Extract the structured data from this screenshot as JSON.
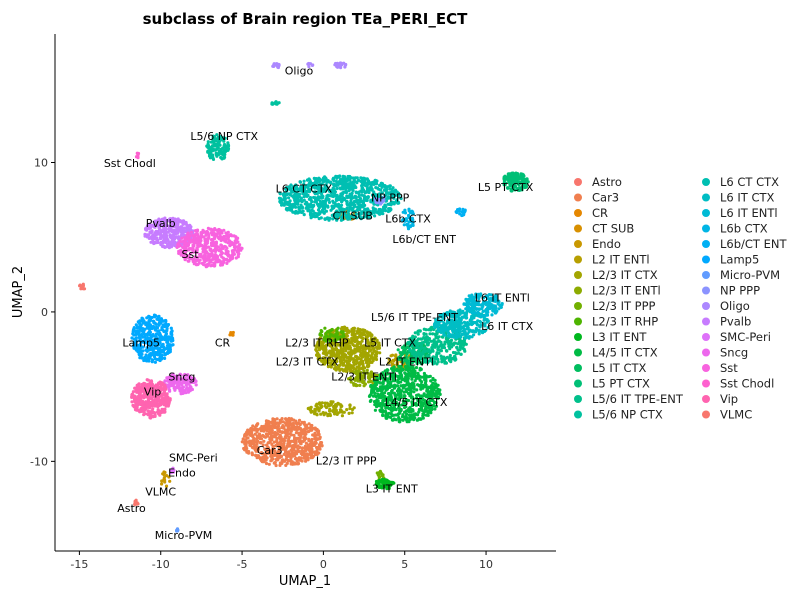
{
  "chart_data": {
    "type": "scatter",
    "title": "subclass of Brain region TEa_PERI_ECT",
    "xlabel": "UMAP_1",
    "ylabel": "UMAP_2",
    "xlim": [
      -16.5,
      14.3
    ],
    "ylim": [
      -16.0,
      18.6
    ],
    "x_ticks": [
      -15,
      -10,
      -5,
      0,
      5,
      10
    ],
    "x_tick_labels": [
      "-15",
      "-10",
      "-5",
      "0",
      "5",
      "10"
    ],
    "y_ticks": [
      -10,
      0,
      10
    ],
    "y_tick_labels": [
      "-10",
      "0",
      "10"
    ],
    "grid": false,
    "legend_placement": "right",
    "series": [
      {
        "name": "Astro",
        "color": "#F8766D",
        "clusters": [
          {
            "cx": -11.5,
            "cy": -12.8,
            "rx": 0.15,
            "ry": 0.2,
            "n": 10
          }
        ]
      },
      {
        "name": "Car3",
        "color": "#F07F4F",
        "clusters": [
          {
            "cx": -2.5,
            "cy": -8.7,
            "rx": 2.5,
            "ry": 1.6,
            "n": 650
          }
        ]
      },
      {
        "name": "CR",
        "color": "#E58700",
        "clusters": [
          {
            "cx": -5.6,
            "cy": -1.5,
            "rx": 0.15,
            "ry": 0.15,
            "n": 8
          }
        ]
      },
      {
        "name": "CT SUB",
        "color": "#D89000",
        "clusters": [
          {
            "cx": 1.5,
            "cy": 6.5,
            "rx": 0.5,
            "ry": 0.4,
            "n": 30
          }
        ]
      },
      {
        "name": "Endo",
        "color": "#C99800",
        "clusters": [
          {
            "cx": -9.7,
            "cy": -11.2,
            "rx": 0.3,
            "ry": 0.6,
            "n": 15
          }
        ]
      },
      {
        "name": "L2 IT ENTl",
        "color": "#B79F00",
        "clusters": [
          {
            "cx": 4.8,
            "cy": -3.3,
            "rx": 0.8,
            "ry": 0.6,
            "n": 60
          }
        ]
      },
      {
        "name": "L2/3 IT CTX",
        "color": "#A3A500",
        "clusters": [
          {
            "cx": 1.5,
            "cy": -2.5,
            "rx": 2.0,
            "ry": 1.5,
            "n": 600
          },
          {
            "cx": 0.5,
            "cy": -6.5,
            "rx": 1.5,
            "ry": 0.5,
            "n": 90
          }
        ]
      },
      {
        "name": "L2/3 IT ENTl",
        "color": "#8DAB00",
        "clusters": [
          {
            "cx": 2.5,
            "cy": -4.5,
            "rx": 1.0,
            "ry": 0.6,
            "n": 80
          }
        ]
      },
      {
        "name": "L2/3 IT PPP",
        "color": "#72B000",
        "clusters": [
          {
            "cx": 3.5,
            "cy": -11.0,
            "rx": 0.25,
            "ry": 0.4,
            "n": 20
          }
        ]
      },
      {
        "name": "L2/3 IT RHP",
        "color": "#4EB400",
        "clusters": [
          {
            "cx": 0.5,
            "cy": -1.5,
            "rx": 0.8,
            "ry": 0.5,
            "n": 50
          }
        ]
      },
      {
        "name": "L3 IT ENT",
        "color": "#00B81F",
        "clusters": [
          {
            "cx": 3.8,
            "cy": -11.5,
            "rx": 0.6,
            "ry": 0.35,
            "n": 60
          }
        ]
      },
      {
        "name": "L4/5 IT CTX",
        "color": "#00BB45",
        "clusters": [
          {
            "cx": 5.0,
            "cy": -5.5,
            "rx": 2.2,
            "ry": 1.9,
            "n": 650
          }
        ]
      },
      {
        "name": "L5 IT CTX",
        "color": "#00BD5F",
        "clusters": [
          {
            "cx": 5.5,
            "cy": -2.8,
            "rx": 1.0,
            "ry": 0.8,
            "n": 120
          }
        ]
      },
      {
        "name": "L5 PT CTX",
        "color": "#00BF76",
        "clusters": [
          {
            "cx": 11.8,
            "cy": 8.7,
            "rx": 0.8,
            "ry": 0.65,
            "n": 150
          }
        ]
      },
      {
        "name": "L5/6 IT TPE-ENT",
        "color": "#00C08B",
        "clusters": [
          {
            "cx": 7.0,
            "cy": -2.2,
            "rx": 1.8,
            "ry": 1.3,
            "n": 300
          }
        ]
      },
      {
        "name": "L5/6 NP CTX",
        "color": "#00C19F",
        "clusters": [
          {
            "cx": -6.5,
            "cy": 11.0,
            "rx": 0.7,
            "ry": 0.9,
            "n": 120
          },
          {
            "cx": -3.0,
            "cy": 14.0,
            "rx": 0.3,
            "ry": 0.15,
            "n": 12
          }
        ]
      },
      {
        "name": "L6 CT CTX",
        "color": "#00BFB2",
        "clusters": [
          {
            "cx": 1.0,
            "cy": 7.6,
            "rx": 3.8,
            "ry": 1.5,
            "n": 900
          }
        ]
      },
      {
        "name": "L6 IT CTX",
        "color": "#00BDC4",
        "clusters": [
          {
            "cx": 8.5,
            "cy": -0.8,
            "rx": 1.7,
            "ry": 1.0,
            "n": 300
          }
        ]
      },
      {
        "name": "L6 IT ENTl",
        "color": "#00BAD5",
        "clusters": [
          {
            "cx": 9.8,
            "cy": 0.5,
            "rx": 1.2,
            "ry": 0.8,
            "n": 160
          }
        ]
      },
      {
        "name": "L6b CTX",
        "color": "#00B5E5",
        "clusters": [
          {
            "cx": 5.2,
            "cy": 6.2,
            "rx": 0.4,
            "ry": 0.7,
            "n": 40
          }
        ]
      },
      {
        "name": "L6b/CT ENT",
        "color": "#00B0F3",
        "clusters": [
          {
            "cx": 8.5,
            "cy": 6.7,
            "rx": 0.4,
            "ry": 0.25,
            "n": 20
          }
        ]
      },
      {
        "name": "Lamp5",
        "color": "#00A9FF",
        "clusters": [
          {
            "cx": -10.5,
            "cy": -1.8,
            "rx": 1.3,
            "ry": 1.6,
            "n": 380
          }
        ]
      },
      {
        "name": "Micro-PVM",
        "color": "#619CFF",
        "clusters": [
          {
            "cx": -9.0,
            "cy": -14.6,
            "rx": 0.12,
            "ry": 0.1,
            "n": 6
          }
        ]
      },
      {
        "name": "NP PPP",
        "color": "#8B93FF",
        "clusters": [
          {
            "cx": 3.5,
            "cy": 7.5,
            "rx": 0.4,
            "ry": 0.3,
            "n": 20
          }
        ]
      },
      {
        "name": "Oligo",
        "color": "#AC88FF",
        "clusters": [
          {
            "cx": -2.9,
            "cy": 16.5,
            "rx": 0.25,
            "ry": 0.2,
            "n": 15
          },
          {
            "cx": 1.0,
            "cy": 16.5,
            "rx": 0.4,
            "ry": 0.2,
            "n": 20
          },
          {
            "cx": -0.8,
            "cy": 16.5,
            "rx": 0.2,
            "ry": 0.15,
            "n": 6
          }
        ]
      },
      {
        "name": "Pvalb",
        "color": "#C77CFF",
        "clusters": [
          {
            "cx": -9.5,
            "cy": 5.3,
            "rx": 1.5,
            "ry": 1.0,
            "n": 380
          }
        ]
      },
      {
        "name": "SMC-Peri",
        "color": "#DE71F9",
        "clusters": [
          {
            "cx": -9.3,
            "cy": -10.6,
            "rx": 0.15,
            "ry": 0.25,
            "n": 8
          }
        ]
      },
      {
        "name": "Sncg",
        "color": "#ED68ED",
        "clusters": [
          {
            "cx": -8.8,
            "cy": -4.8,
            "rx": 1.0,
            "ry": 0.7,
            "n": 140
          }
        ]
      },
      {
        "name": "Sst",
        "color": "#F863DF",
        "clusters": [
          {
            "cx": -7.0,
            "cy": 4.3,
            "rx": 2.0,
            "ry": 1.3,
            "n": 450
          }
        ]
      },
      {
        "name": "Sst Chodl",
        "color": "#FE61CF",
        "clusters": [
          {
            "cx": -11.4,
            "cy": 10.5,
            "rx": 0.12,
            "ry": 0.2,
            "n": 6
          }
        ]
      },
      {
        "name": "Vip",
        "color": "#FF64B0",
        "clusters": [
          {
            "cx": -10.6,
            "cy": -5.8,
            "rx": 1.2,
            "ry": 1.3,
            "n": 380
          }
        ]
      },
      {
        "name": "VLMC",
        "color": "#F8766D",
        "clusters": [
          {
            "cx": -14.8,
            "cy": 1.7,
            "rx": 0.2,
            "ry": 0.2,
            "n": 10
          }
        ]
      }
    ],
    "cluster_labels": [
      {
        "text": "Oligo",
        "x": -1.5,
        "y": 15.9
      },
      {
        "text": "L5/6 NP CTX",
        "x": -6.1,
        "y": 11.5
      },
      {
        "text": "Sst Chodl",
        "x": -11.9,
        "y": 9.7
      },
      {
        "text": "L6 CT CTX",
        "x": -1.2,
        "y": 8.0
      },
      {
        "text": "NP PPP",
        "x": 4.1,
        "y": 7.4
      },
      {
        "text": "CT SUB",
        "x": 1.8,
        "y": 6.2
      },
      {
        "text": "L6b CTX",
        "x": 5.2,
        "y": 6.0
      },
      {
        "text": "L6b/CT ENT",
        "x": 6.2,
        "y": 4.6
      },
      {
        "text": "L5 PT CTX",
        "x": 11.2,
        "y": 8.1
      },
      {
        "text": "Pvalb",
        "x": -10.0,
        "y": 5.7
      },
      {
        "text": "Sst",
        "x": -8.2,
        "y": 3.6
      },
      {
        "text": "L6 IT ENTl",
        "x": 11.0,
        "y": 0.7
      },
      {
        "text": "L5/6 IT TPE-ENT",
        "x": 5.6,
        "y": -0.6
      },
      {
        "text": "L6 IT CTX",
        "x": 11.3,
        "y": -1.2
      },
      {
        "text": "Lamp5",
        "x": -11.2,
        "y": -2.3
      },
      {
        "text": "CR",
        "x": -6.2,
        "y": -2.3
      },
      {
        "text": "L2/3 IT RHP",
        "x": -0.4,
        "y": -2.3
      },
      {
        "text": "L5 IT CTX",
        "x": 4.1,
        "y": -2.3
      },
      {
        "text": "L2/3 IT CTX",
        "x": -1.0,
        "y": -3.6
      },
      {
        "text": "L2 IT ENTl",
        "x": 5.1,
        "y": -3.6
      },
      {
        "text": "Sncg",
        "x": -8.7,
        "y": -4.6
      },
      {
        "text": "L2/3 IT ENTl",
        "x": 2.5,
        "y": -4.6
      },
      {
        "text": "Vip",
        "x": -10.5,
        "y": -5.6
      },
      {
        "text": "L4/5 IT CTX",
        "x": 5.7,
        "y": -6.3
      },
      {
        "text": "Car3",
        "x": -3.3,
        "y": -9.5
      },
      {
        "text": "SMC-Peri",
        "x": -8.0,
        "y": -10.0
      },
      {
        "text": "L2/3 IT PPP",
        "x": 1.4,
        "y": -10.2
      },
      {
        "text": "Endo",
        "x": -8.7,
        "y": -11.0
      },
      {
        "text": "VLMC",
        "x": -10.0,
        "y": -12.3
      },
      {
        "text": "L3 IT ENT",
        "x": 4.2,
        "y": -12.1
      },
      {
        "text": "Astro",
        "x": -11.8,
        "y": -13.4
      },
      {
        "text": "Micro-PVM",
        "x": -8.6,
        "y": -15.2
      }
    ]
  }
}
